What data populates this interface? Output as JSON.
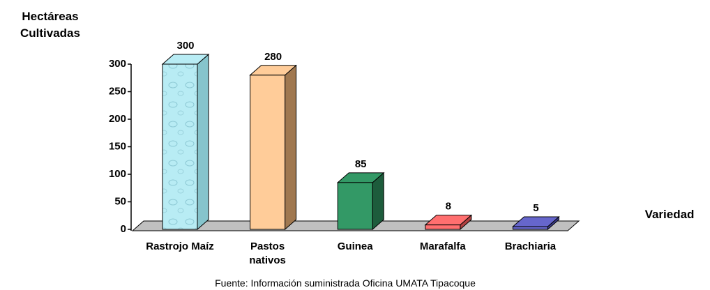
{
  "chart_data": {
    "type": "bar3d",
    "y_label": "Hectáreas Cultivadas",
    "x_label": "Variedad",
    "source": "Fuente: Información suministrada  Oficina UMATA Tipacoque",
    "categories": [
      "Rastrojo Maíz",
      "Pastos nativos",
      "Guinea",
      "Marafalfa",
      "Brachiaria"
    ],
    "values": [
      300,
      280,
      85,
      8,
      5
    ],
    "colors": [
      "#b8ecf4",
      "#ffcc99",
      "#339966",
      "#ff6f6f",
      "#6666cc"
    ],
    "side_colors": [
      "#86c4cc",
      "#a07850",
      "#1d5c3c",
      "#b04040",
      "#3c3c8c"
    ],
    "ylim": [
      0,
      300
    ],
    "yticks": [
      0,
      50,
      100,
      150,
      200,
      250,
      300
    ]
  }
}
